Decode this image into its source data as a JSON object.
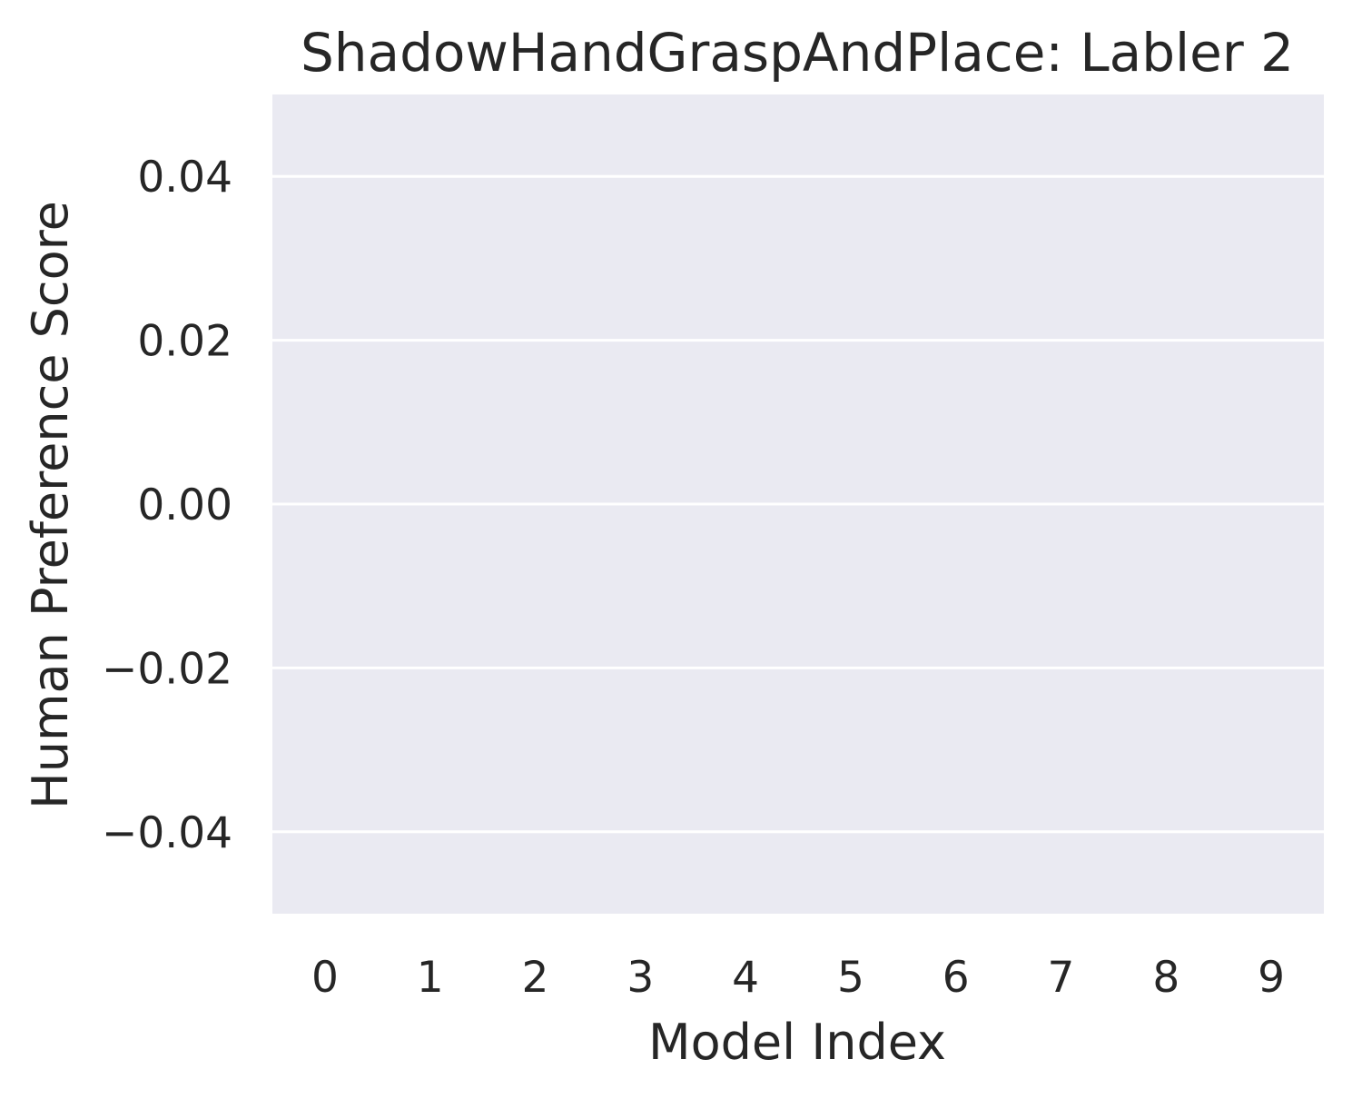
{
  "chart_data": {
    "type": "bar",
    "title": "ShadowHandGraspAndPlace: Labler 2",
    "xlabel": "Model Index",
    "ylabel": "Human Preference Score",
    "categories": [
      "0",
      "1",
      "2",
      "3",
      "4",
      "5",
      "6",
      "7",
      "8",
      "9"
    ],
    "values": [
      0,
      0,
      0,
      0,
      0,
      0,
      0,
      0,
      0,
      0
    ],
    "ylim": [
      -0.05,
      0.05
    ],
    "yticks": [
      {
        "value": -0.04,
        "label": "−0.04"
      },
      {
        "value": -0.02,
        "label": "−0.02"
      },
      {
        "value": 0.0,
        "label": "0.00"
      },
      {
        "value": 0.02,
        "label": "0.02"
      },
      {
        "value": 0.04,
        "label": "0.04"
      }
    ],
    "grid": true,
    "legend": "none",
    "colors": {
      "plot_background": "#eaeaf2",
      "grid": "#ffffff",
      "text": "#262626",
      "bar": "#4c72b0"
    }
  }
}
